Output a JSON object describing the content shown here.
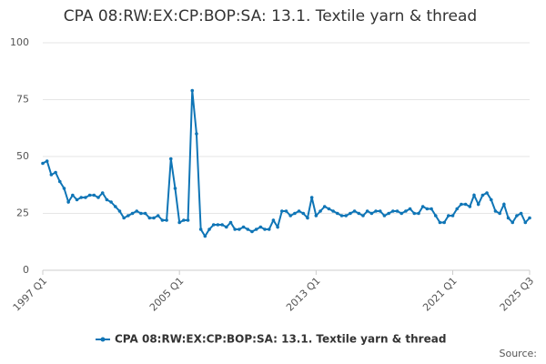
{
  "chart_data": {
    "type": "line",
    "title": "CPA 08:RW:EX:CP:BOP:SA: 13.1. Textile yarn & thread",
    "source": "Source:",
    "categories": [
      "1997 Q1",
      null,
      null,
      null,
      null,
      null,
      null,
      null,
      null,
      null,
      null,
      null,
      null,
      null,
      null,
      null,
      null,
      null,
      null,
      null,
      null,
      null,
      null,
      null,
      null,
      null,
      null,
      null,
      null,
      null,
      null,
      null,
      "2005 Q1",
      null,
      null,
      null,
      null,
      null,
      null,
      null,
      null,
      null,
      null,
      null,
      null,
      null,
      null,
      null,
      null,
      null,
      null,
      null,
      null,
      null,
      null,
      null,
      null,
      null,
      null,
      null,
      null,
      null,
      null,
      null,
      "2013 Q1",
      null,
      null,
      null,
      null,
      null,
      null,
      null,
      null,
      null,
      null,
      null,
      null,
      null,
      null,
      null,
      null,
      null,
      null,
      null,
      null,
      null,
      null,
      null,
      null,
      null,
      null,
      null,
      null,
      null,
      null,
      null,
      "2021 Q1",
      null,
      null,
      null,
      null,
      null,
      null,
      null,
      null,
      null,
      null,
      null,
      null,
      null,
      null,
      null,
      null,
      null,
      "2025 Q3"
    ],
    "series": [
      {
        "name": "CPA 08:RW:EX:CP:BOP:SA: 13.1. Textile yarn & thread",
        "color": "#0f75b6",
        "values": [
          47,
          48,
          42,
          43,
          39,
          36,
          30,
          33,
          31,
          32,
          32,
          33,
          33,
          32,
          34,
          31,
          30,
          28,
          26,
          23,
          24,
          25,
          26,
          25,
          25,
          23,
          23,
          24,
          22,
          22,
          49,
          36,
          21,
          22,
          22,
          79,
          60,
          18,
          15,
          18,
          20,
          20,
          20,
          19,
          21,
          18,
          18,
          19,
          18,
          17,
          18,
          19,
          18,
          18,
          22,
          19,
          26,
          26,
          24,
          25,
          26,
          25,
          23,
          32,
          24,
          26,
          28,
          27,
          26,
          25,
          24,
          24,
          25,
          26,
          25,
          24,
          26,
          25,
          26,
          26,
          24,
          25,
          26,
          26,
          25,
          26,
          27,
          25,
          25,
          28,
          27,
          27,
          24,
          21,
          21,
          24,
          24,
          27,
          29,
          29,
          28,
          33,
          29,
          33,
          34,
          31,
          26,
          25,
          29,
          23,
          21,
          24,
          25,
          21,
          23
        ]
      }
    ],
    "ylim": [
      0,
      100
    ],
    "yticks": [
      0,
      25,
      50,
      75,
      100
    ],
    "grid": true
  }
}
